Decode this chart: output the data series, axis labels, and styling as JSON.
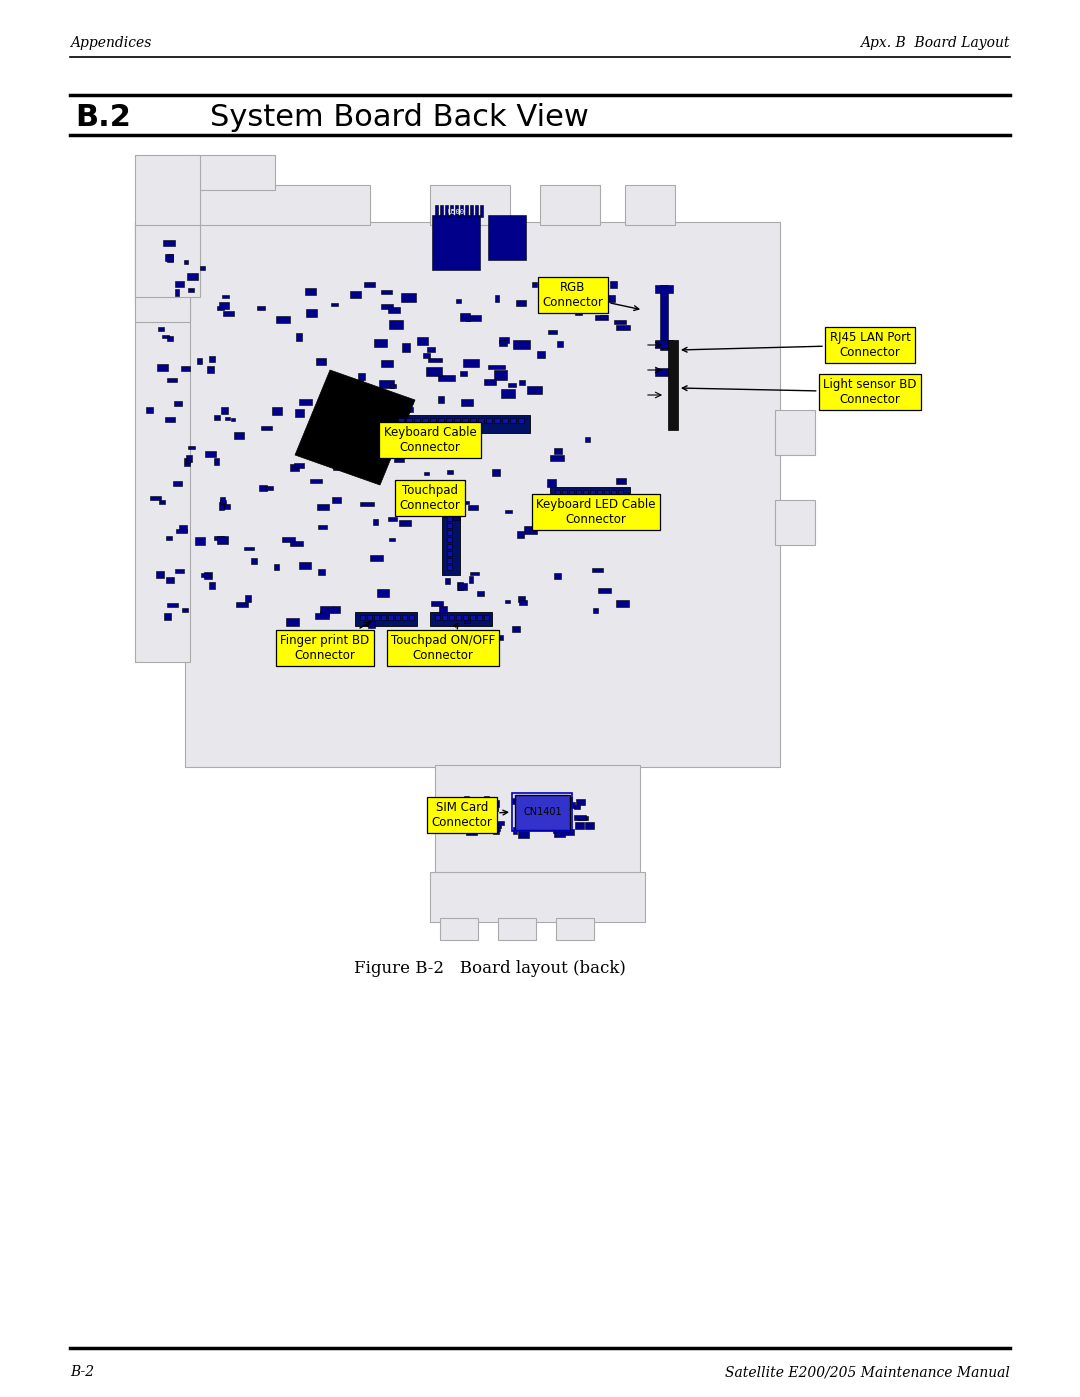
{
  "page_bg": "#ffffff",
  "header_left": "Appendices",
  "header_right": "Apx. B  Board Layout",
  "section_number": "B.2",
  "section_title": "System Board Back View",
  "figure_caption": "Figure B-2   Board layout (back)",
  "footer_left": "B-2",
  "footer_right": "Satellite E200/205 Maintenance Manual",
  "board_fill": "#e8e8ec",
  "board_edge": "#aaaaaa",
  "component_dark": "#00008b",
  "component_mid": "#0000cd",
  "arrow_color": "#000000",
  "label_bg_yellow": "#ffff00",
  "label_bg_white": "#ffffff"
}
